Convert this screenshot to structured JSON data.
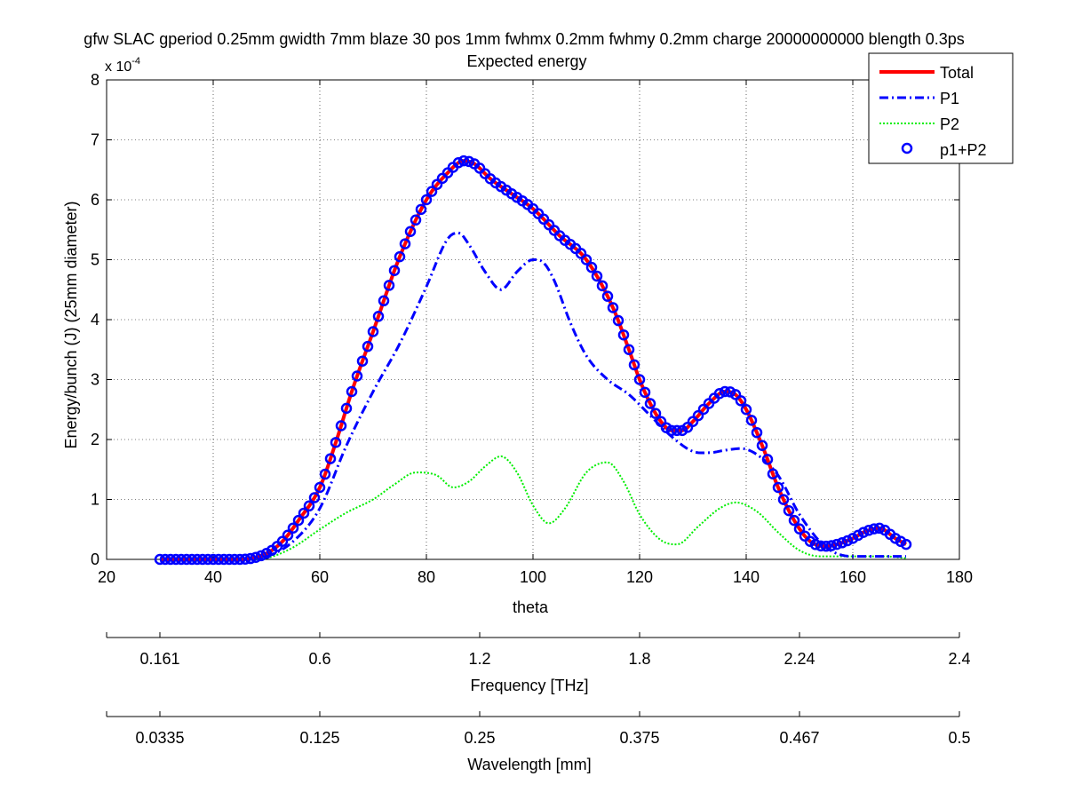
{
  "chart_data": {
    "type": "line",
    "title": "gfw SLAC gperiod 0.25mm gwidth 7mm blaze 30 pos 1mm fwhmx 0.2mm fwhmy 0.2mm charge 20000000000 blength 0.3ps",
    "subtitle": "Expected energy",
    "xlabel": "theta",
    "ylabel": "Energy/bunch (J) (25mm diameter)",
    "y_exponent_label": "x 10",
    "y_exponent_power": "-4",
    "xlim": [
      20,
      180
    ],
    "ylim": [
      0,
      8
    ],
    "xticks": [
      "20",
      "40",
      "60",
      "80",
      "100",
      "120",
      "140",
      "160",
      "180"
    ],
    "yticks": [
      "0",
      "1",
      "2",
      "3",
      "4",
      "5",
      "6",
      "7",
      "8"
    ],
    "grid": true,
    "legend_position": "top-right",
    "series": [
      {
        "name": "Total",
        "color": "#ff0000",
        "style": "solid",
        "x": [
          30,
          45,
          50,
          53,
          56,
          60,
          63,
          66,
          70,
          75,
          80,
          84,
          87,
          89,
          92,
          96,
          100,
          105,
          110,
          115,
          118,
          120,
          122,
          124,
          126,
          128,
          130,
          133,
          136,
          138,
          140,
          143,
          146,
          149,
          152,
          155,
          157,
          160,
          162,
          165,
          168,
          170
        ],
        "values": [
          0,
          0,
          0.1,
          0.3,
          0.65,
          1.2,
          1.95,
          2.8,
          3.8,
          5.05,
          6.0,
          6.45,
          6.65,
          6.6,
          6.35,
          6.1,
          5.85,
          5.4,
          5.0,
          4.2,
          3.5,
          3.0,
          2.6,
          2.3,
          2.15,
          2.15,
          2.3,
          2.6,
          2.8,
          2.75,
          2.5,
          1.9,
          1.2,
          0.65,
          0.3,
          0.22,
          0.25,
          0.35,
          0.45,
          0.52,
          0.35,
          0.25
        ]
      },
      {
        "name": "P1",
        "color": "#0000ff",
        "style": "dashdot",
        "x": [
          30,
          45,
          50,
          55,
          60,
          65,
          70,
          75,
          80,
          84,
          86,
          88,
          91,
          94,
          97,
          100,
          102,
          104,
          107,
          110,
          114,
          118,
          122,
          126,
          130,
          133,
          136,
          139,
          142,
          146,
          150,
          155,
          160,
          165,
          170
        ],
        "values": [
          0,
          0,
          0.05,
          0.3,
          0.85,
          1.9,
          2.8,
          3.6,
          4.55,
          5.35,
          5.45,
          5.25,
          4.8,
          4.5,
          4.8,
          5.0,
          4.95,
          4.65,
          3.95,
          3.4,
          3.0,
          2.75,
          2.4,
          2.05,
          1.8,
          1.78,
          1.82,
          1.85,
          1.75,
          1.4,
          0.75,
          0.2,
          0.05,
          0.05,
          0.05
        ]
      },
      {
        "name": "P2",
        "color": "#00ee00",
        "style": "dotted",
        "x": [
          30,
          45,
          50,
          55,
          60,
          65,
          70,
          74,
          78,
          82,
          85,
          88,
          91,
          94,
          97,
          100,
          103,
          106,
          110,
          114,
          117,
          120,
          124,
          127,
          131,
          135,
          138,
          142,
          146,
          150,
          154,
          158,
          162,
          166,
          170
        ],
        "values": [
          0,
          0,
          0.02,
          0.2,
          0.5,
          0.78,
          1.0,
          1.25,
          1.45,
          1.4,
          1.2,
          1.3,
          1.55,
          1.72,
          1.45,
          0.9,
          0.6,
          0.85,
          1.45,
          1.62,
          1.3,
          0.75,
          0.32,
          0.25,
          0.55,
          0.85,
          0.95,
          0.8,
          0.45,
          0.15,
          0.05,
          0.05,
          0.05,
          0.05,
          0.02
        ]
      },
      {
        "name": "p1+P2",
        "color": "#0000ff",
        "style": "circles",
        "x_start": 30,
        "x_end": 170,
        "x_step": 1
      }
    ],
    "secondary_axes": [
      {
        "label": "Frequency [THz]",
        "tick_positions_theta": [
          30,
          60,
          90,
          120,
          150,
          180
        ],
        "tick_labels": [
          "0.161",
          "0.6",
          "1.2",
          "1.8",
          "2.24",
          "2.4"
        ]
      },
      {
        "label": "Wavelength [mm]",
        "tick_positions_theta": [
          30,
          60,
          90,
          120,
          150,
          180
        ],
        "tick_labels": [
          "0.0335",
          "0.125",
          "0.25",
          "0.375",
          "0.467",
          "0.5"
        ]
      }
    ]
  }
}
